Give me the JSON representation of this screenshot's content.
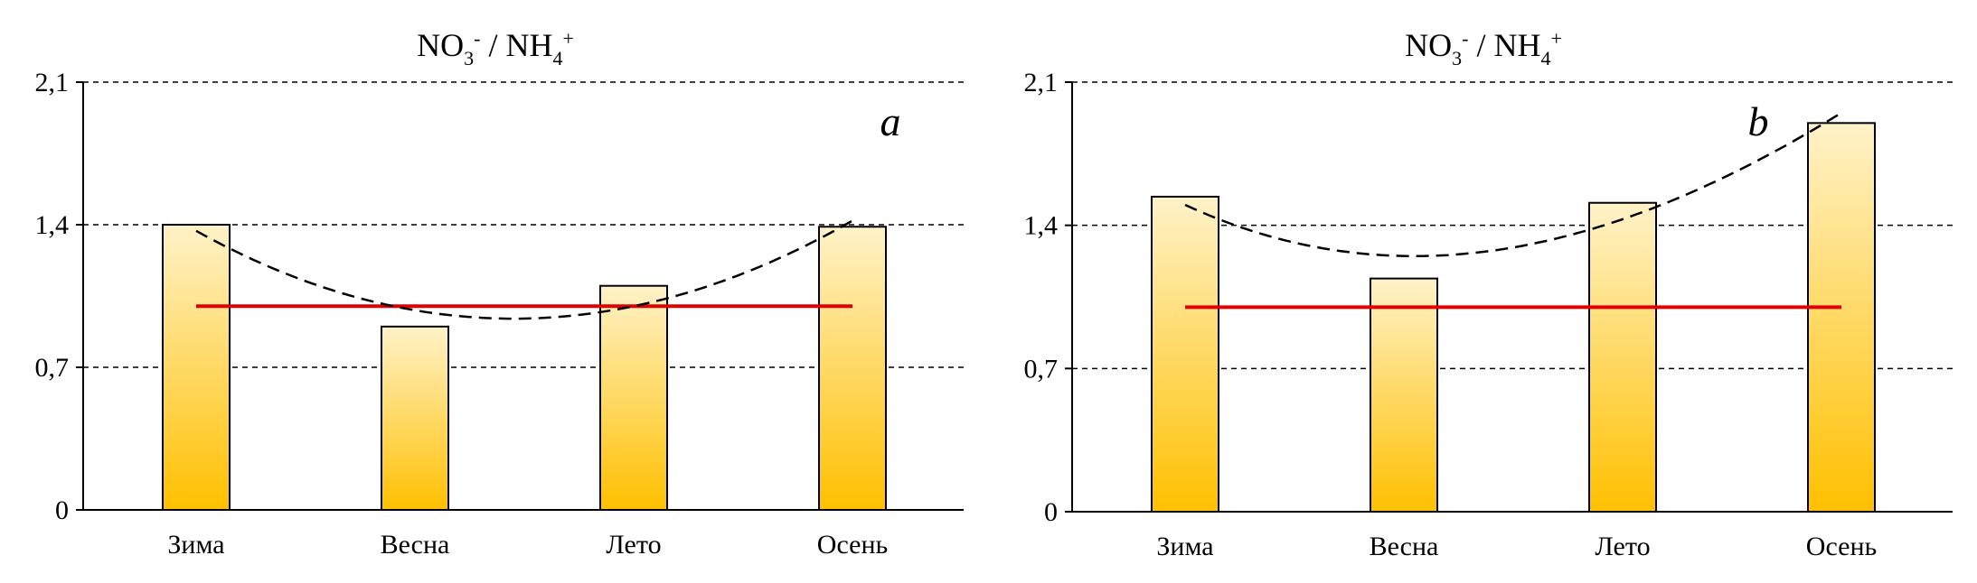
{
  "figure": {
    "colors": {
      "bar_top": "#FFF2C9",
      "bar_bottom": "#FFC000",
      "bar_stroke": "#000000",
      "ref_line": "#E00000",
      "trend": "#000000",
      "grid": "#000000"
    }
  },
  "chart_data": [
    {
      "type": "bar",
      "panel": "a",
      "title": {
        "base1": "NO",
        "sub1": "3",
        "sup1": "-",
        "mid": " / NH",
        "sub2": "4",
        "sup2": "+"
      },
      "categories": [
        "Зима",
        "Весна",
        "Лето",
        "Осень"
      ],
      "values": [
        1.4,
        0.9,
        1.1,
        1.39
      ],
      "reference_line": 1.0,
      "trendline": {
        "type": "polynomial",
        "values": [
          1.37,
          0.98,
          1.0,
          1.42
        ]
      },
      "ylim": [
        0,
        2.1
      ],
      "yticks": [
        0,
        0.7,
        1.4,
        2.1
      ],
      "ytick_labels": [
        "0",
        "0,7",
        "1,4",
        "2,1"
      ],
      "grid": "dashed-horizontal"
    },
    {
      "type": "bar",
      "panel": "b",
      "title": {
        "base1": "NO",
        "sub1": "3",
        "sup1": "-",
        "mid": " / NH",
        "sub2": "4",
        "sup2": "+"
      },
      "categories": [
        "Зима",
        "Весна",
        "Лето",
        "Осень"
      ],
      "values": [
        1.54,
        1.14,
        1.51,
        1.9
      ],
      "reference_line": 1.0,
      "trendline": {
        "type": "polynomial",
        "values": [
          1.5,
          1.25,
          1.43,
          1.95
        ]
      },
      "ylim": [
        0,
        2.1
      ],
      "yticks": [
        0,
        0.7,
        1.4,
        2.1
      ],
      "ytick_labels": [
        "0",
        "0,7",
        "1,4",
        "2,1"
      ],
      "grid": "dashed-horizontal"
    }
  ]
}
